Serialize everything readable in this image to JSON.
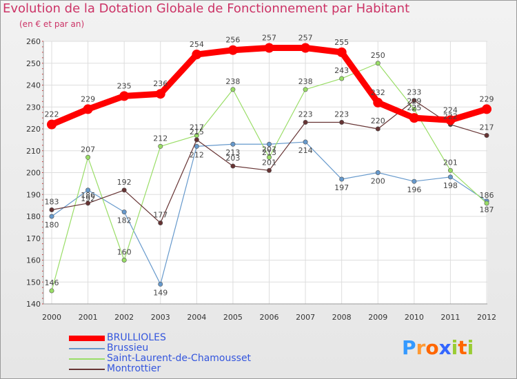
{
  "chart_data": {
    "type": "line",
    "title": "Evolution de la Dotation Globale de Fonctionnement par Habitant",
    "subtitle": "(en € et par an)",
    "xlabel": "",
    "ylabel": "",
    "ylim": [
      140,
      260
    ],
    "yticks": [
      140,
      150,
      160,
      170,
      180,
      190,
      200,
      210,
      220,
      230,
      240,
      250,
      260
    ],
    "categories": [
      "2000",
      "2001",
      "2002",
      "2003",
      "2004",
      "2005",
      "2006",
      "2007",
      "2008",
      "2009",
      "2010",
      "2011",
      "2012"
    ],
    "grid": true,
    "legend_position": "bottom-left",
    "series": [
      {
        "name": "BRULLIOLES",
        "color": "#ff0000",
        "values": [
          222,
          229,
          235,
          236,
          254,
          256,
          257,
          257,
          255,
          232,
          225,
          224,
          229
        ]
      },
      {
        "name": "Brussieu",
        "color": "#6699cc",
        "values": [
          180,
          192,
          182,
          149,
          212,
          213,
          213,
          214,
          197,
          200,
          196,
          198,
          187
        ]
      },
      {
        "name": "Saint-Laurent-de-Chamousset",
        "color": "#99dd66",
        "values": [
          146,
          207,
          160,
          212,
          217,
          238,
          207,
          238,
          243,
          250,
          229,
          201,
          186
        ]
      },
      {
        "name": "Montrottier",
        "color": "#663333",
        "values": [
          183,
          186,
          192,
          177,
          215,
          203,
          201,
          223,
          223,
          220,
          233,
          222,
          217
        ]
      }
    ]
  },
  "logo": {
    "text": "Proxiti",
    "letters": [
      "P",
      "r",
      "o",
      "x",
      "i",
      "t",
      "i"
    ],
    "colors": [
      "#3399ff",
      "#ff9933",
      "#ff6600",
      "#3366ff",
      "#99cc33",
      "#ff6600",
      "#99cc33"
    ]
  }
}
